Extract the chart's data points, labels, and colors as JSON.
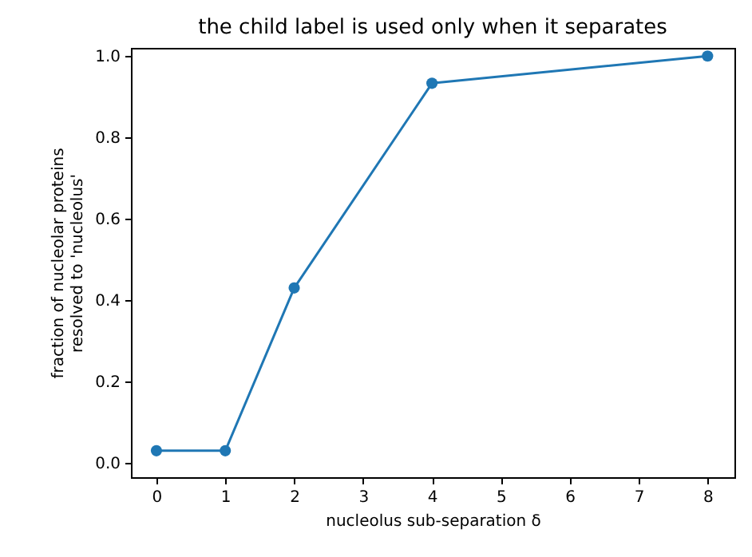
{
  "chart_data": {
    "type": "line",
    "title": "the child label is used only when it separates",
    "xlabel": "nucleolus sub-separation δ",
    "ylabel": "fraction of nucleolar proteins\nresolved to 'nucleolus'",
    "x": [
      0,
      1,
      2,
      4,
      8
    ],
    "series": [
      {
        "color": "#1f77b4",
        "values": [
          0.03,
          0.03,
          0.43,
          0.933,
          1.0
        ]
      }
    ],
    "xlim": [
      -0.37,
      8.39
    ],
    "xticks": [
      0,
      1,
      2,
      3,
      4,
      5,
      6,
      7,
      8
    ],
    "ylim": [
      -0.035,
      1.02
    ],
    "yticks": [
      {
        "value": 0,
        "label": "0.0"
      },
      0.2,
      0.4,
      0.6,
      0.8,
      {
        "value": 1,
        "label": "1.0"
      }
    ],
    "grid": false,
    "marker": "circle",
    "line_style": "solid"
  }
}
